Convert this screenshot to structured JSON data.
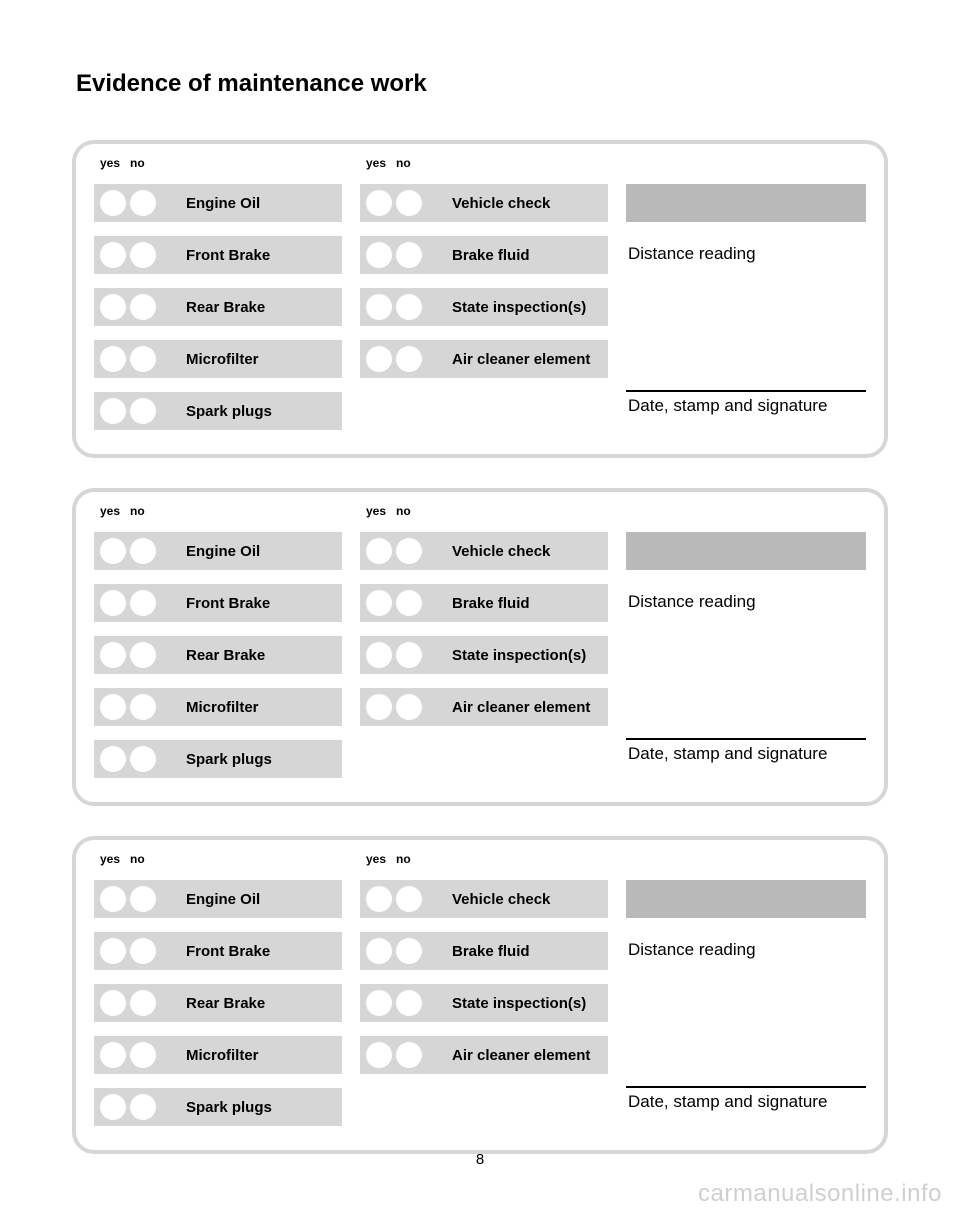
{
  "title": "Evidence of maintenance work",
  "headers": {
    "yes": "yes",
    "no": "no"
  },
  "col1_items": [
    "Engine Oil",
    "Front Brake",
    "Rear Brake",
    "Microfilter",
    "Spark plugs"
  ],
  "col2_items": [
    "Vehicle check",
    "Brake fluid",
    "State inspection(s)",
    "Air cleaner element"
  ],
  "col3": {
    "distance_label": "Distance reading",
    "signature_label": "Date, stamp and signature"
  },
  "page_number": "8",
  "watermark": "carmanualsonline.info",
  "colors": {
    "panel_border": "#d6d6d6",
    "item_bg": "#d6d6d6",
    "distance_bg": "#b9b9b9",
    "circle_fill": "#ffffff",
    "text": "#000000",
    "watermark": "#cfcfcf"
  },
  "panel_count": 3
}
